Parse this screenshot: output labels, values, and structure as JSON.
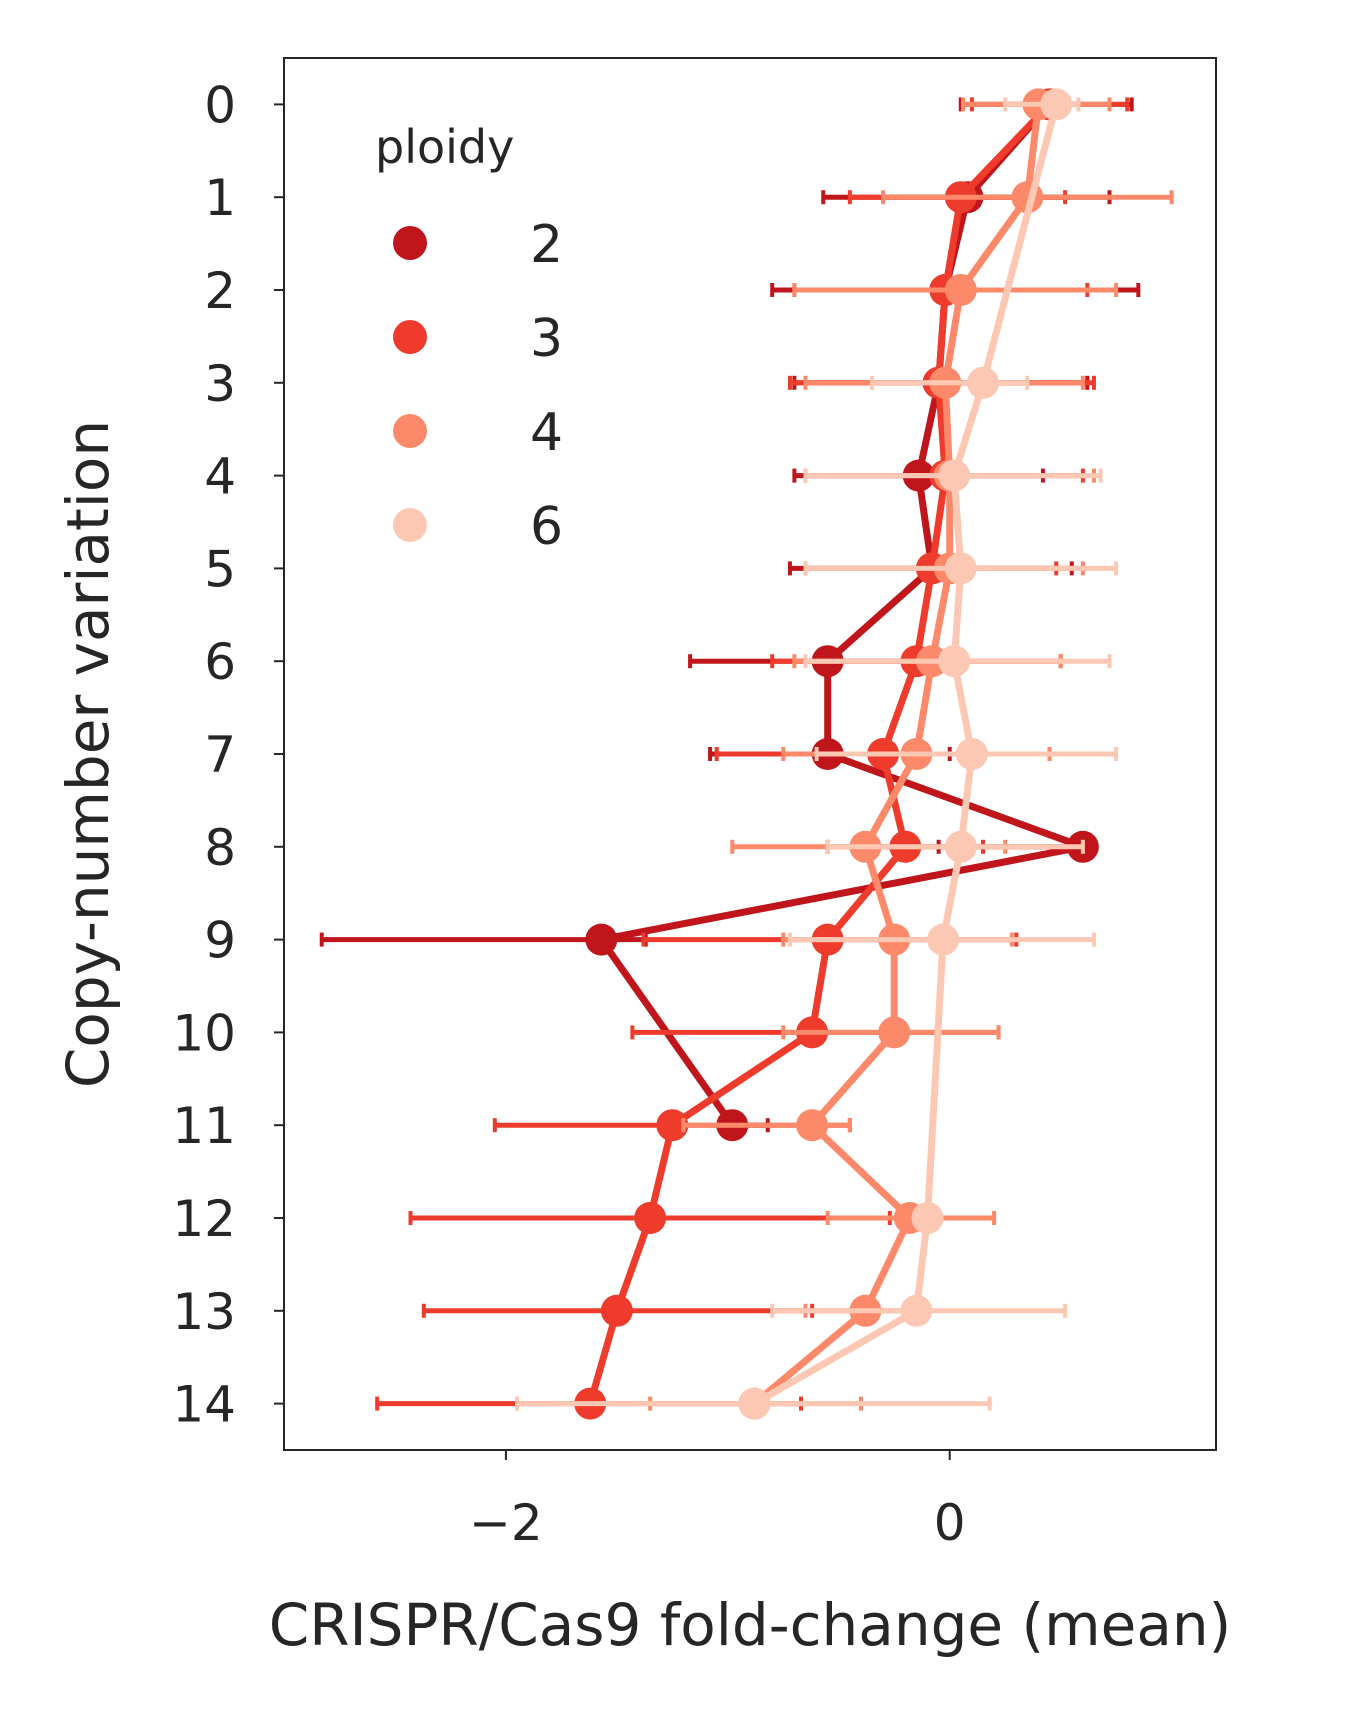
{
  "chart_data": {
    "type": "line",
    "orientation": "horizontal",
    "title": "",
    "xlabel": "CRISPR/Cas9 fold-change (mean)",
    "ylabel": "Copy-number variation",
    "xlim": [
      -3.0,
      1.2
    ],
    "ylim": [
      -0.5,
      14.5
    ],
    "xticks": [
      -2,
      0
    ],
    "xtick_labels": [
      "−2",
      "0"
    ],
    "yticks": [
      0,
      1,
      2,
      3,
      4,
      5,
      6,
      7,
      8,
      9,
      10,
      11,
      12,
      13,
      14
    ],
    "ytick_labels": [
      "0",
      "1",
      "2",
      "3",
      "4",
      "5",
      "6",
      "7",
      "8",
      "9",
      "10",
      "11",
      "12",
      "13",
      "14"
    ],
    "grid": false,
    "legend": {
      "title": "ploidy",
      "placement": "top-left"
    },
    "series": [
      {
        "name": "2",
        "color": "#bf151b",
        "points": [
          {
            "y": 0,
            "x": 0.45,
            "lo": 0.05,
            "hi": 0.82
          },
          {
            "y": 1,
            "x": 0.08,
            "lo": -0.57,
            "hi": 0.72
          },
          {
            "y": 2,
            "x": -0.02,
            "lo": -0.8,
            "hi": 0.85
          },
          {
            "y": 3,
            "x": -0.05,
            "lo": -0.7,
            "hi": 0.62
          },
          {
            "y": 4,
            "x": -0.14,
            "lo": -0.7,
            "hi": 0.42
          },
          {
            "y": 5,
            "x": -0.08,
            "lo": -0.72,
            "hi": 0.55
          },
          {
            "y": 6,
            "x": -0.55,
            "lo": -1.17,
            "hi": 0.05
          },
          {
            "y": 7,
            "x": -0.55,
            "lo": -1.08,
            "hi": 0.0
          },
          {
            "y": 8,
            "x": 0.6,
            "lo": -0.05,
            "hi": 0.62
          },
          {
            "y": 9,
            "x": -1.57,
            "lo": -2.83,
            "hi": -1.37
          },
          {
            "y": 11,
            "x": -0.98,
            "lo": -1.02,
            "hi": -0.82
          }
        ]
      },
      {
        "name": "3",
        "color": "#ef3b2c",
        "points": [
          {
            "y": 0,
            "x": 0.45,
            "lo": 0.1,
            "hi": 0.8
          },
          {
            "y": 1,
            "x": 0.05,
            "lo": -0.45,
            "hi": 0.52
          },
          {
            "y": 2,
            "x": -0.02,
            "lo": -0.7,
            "hi": 0.62
          },
          {
            "y": 3,
            "x": -0.05,
            "lo": -0.72,
            "hi": 0.65
          },
          {
            "y": 4,
            "x": -0.02,
            "lo": -0.65,
            "hi": 0.6
          },
          {
            "y": 5,
            "x": -0.08,
            "lo": -0.65,
            "hi": 0.48
          },
          {
            "y": 6,
            "x": -0.15,
            "lo": -0.8,
            "hi": 0.5
          },
          {
            "y": 7,
            "x": -0.3,
            "lo": -1.05,
            "hi": 0.45
          },
          {
            "y": 8,
            "x": -0.2,
            "lo": -0.55,
            "hi": 0.15
          },
          {
            "y": 9,
            "x": -0.55,
            "lo": -1.38,
            "hi": 0.3
          },
          {
            "y": 10,
            "x": -0.62,
            "lo": -1.43,
            "hi": 0.22
          },
          {
            "y": 11,
            "x": -1.25,
            "lo": -2.05,
            "hi": -0.45
          },
          {
            "y": 12,
            "x": -1.35,
            "lo": -2.43,
            "hi": -0.27
          },
          {
            "y": 13,
            "x": -1.5,
            "lo": -2.37,
            "hi": -0.62
          },
          {
            "y": 14,
            "x": -1.62,
            "lo": -2.58,
            "hi": -0.67
          }
        ]
      },
      {
        "name": "4",
        "color": "#fc8a6a",
        "points": [
          {
            "y": 0,
            "x": 0.4,
            "lo": 0.06,
            "hi": 0.72
          },
          {
            "y": 1,
            "x": 0.35,
            "lo": -0.3,
            "hi": 1.0
          },
          {
            "y": 2,
            "x": 0.05,
            "lo": -0.7,
            "hi": 0.75
          },
          {
            "y": 3,
            "x": -0.02,
            "lo": -0.65,
            "hi": 0.6
          },
          {
            "y": 4,
            "x": 0.0,
            "lo": -0.65,
            "hi": 0.65
          },
          {
            "y": 5,
            "x": 0.0,
            "lo": -0.65,
            "hi": 0.6
          },
          {
            "y": 6,
            "x": -0.08,
            "lo": -0.7,
            "hi": 0.5
          },
          {
            "y": 7,
            "x": -0.15,
            "lo": -0.75,
            "hi": 0.45
          },
          {
            "y": 8,
            "x": -0.38,
            "lo": -0.98,
            "hi": 0.25
          },
          {
            "y": 9,
            "x": -0.25,
            "lo": -0.75,
            "hi": 0.28
          },
          {
            "y": 10,
            "x": -0.25,
            "lo": -0.75,
            "hi": 0.22
          },
          {
            "y": 11,
            "x": -0.62,
            "lo": -1.2,
            "hi": -0.45
          },
          {
            "y": 12,
            "x": -0.18,
            "lo": -0.55,
            "hi": 0.2
          },
          {
            "y": 13,
            "x": -0.38,
            "lo": -0.65,
            "hi": -0.1
          },
          {
            "y": 14,
            "x": -0.88,
            "lo": -1.35,
            "hi": -0.4
          }
        ]
      },
      {
        "name": "6",
        "color": "#fdc8b3",
        "points": [
          {
            "y": 0,
            "x": 0.48,
            "lo": 0.25,
            "hi": 0.58
          },
          {
            "y": 3,
            "x": 0.15,
            "lo": -0.35,
            "hi": 0.35
          },
          {
            "y": 4,
            "x": 0.02,
            "lo": -0.65,
            "hi": 0.68
          },
          {
            "y": 5,
            "x": 0.05,
            "lo": -0.65,
            "hi": 0.75
          },
          {
            "y": 6,
            "x": 0.02,
            "lo": -0.65,
            "hi": 0.72
          },
          {
            "y": 7,
            "x": 0.1,
            "lo": -0.6,
            "hi": 0.75
          },
          {
            "y": 8,
            "x": 0.05,
            "lo": -0.55,
            "hi": 0.6
          },
          {
            "y": 9,
            "x": -0.03,
            "lo": -0.72,
            "hi": 0.65
          },
          {
            "y": 12,
            "x": -0.1,
            "lo": -0.1,
            "hi": -0.1
          },
          {
            "y": 13,
            "x": -0.15,
            "lo": -0.8,
            "hi": 0.52
          },
          {
            "y": 14,
            "x": -0.88,
            "lo": -1.95,
            "hi": 0.18
          }
        ]
      }
    ]
  }
}
